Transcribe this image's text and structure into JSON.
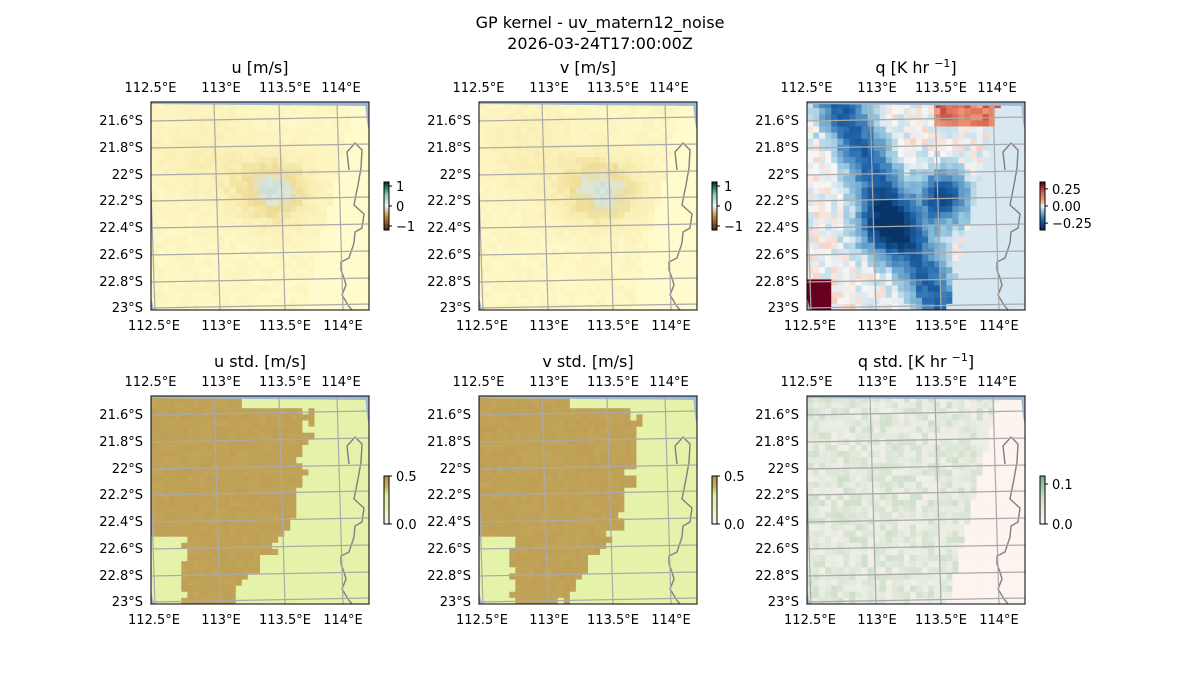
{
  "figure": {
    "title_line1": "GP kernel - uv_matern12_noise",
    "title_line2": "2026-03-24T17:00:00Z"
  },
  "chart_data": [
    {
      "type": "heatmap",
      "id": "u",
      "title": "u [m/s]",
      "lon_ticks": [
        "112.5°E",
        "113°E",
        "113.5°E",
        "114°E"
      ],
      "lat_ticks": [
        "21.6°S",
        "21.8°S",
        "22°S",
        "22.2°S",
        "22.4°S",
        "22.6°S",
        "22.8°S",
        "23°S"
      ],
      "colorbar": {
        "ticks": [
          "1",
          "0",
          "−1"
        ],
        "range": [
          -1.2,
          1.2
        ]
      },
      "colormap": "BrBG",
      "field_level_range": [
        0.0,
        0.25
      ]
    },
    {
      "type": "heatmap",
      "id": "v",
      "title": "v [m/s]",
      "lon_ticks": [
        "112.5°E",
        "113°E",
        "113.5°E",
        "114°E"
      ],
      "lat_ticks": [
        "21.6°S",
        "21.8°S",
        "22°S",
        "22.2°S",
        "22.4°S",
        "22.6°S",
        "22.8°S",
        "23°S"
      ],
      "colorbar": {
        "ticks": [
          "1",
          "0",
          "−1"
        ],
        "range": [
          -1.2,
          1.2
        ]
      },
      "colormap": "BrBG",
      "field_level_range": [
        0.0,
        0.25
      ]
    },
    {
      "type": "heatmap",
      "id": "q",
      "title": "q [K hr ",
      "title_sup": "−1",
      "title_end": "]",
      "lon_ticks": [
        "112.5°E",
        "113°E",
        "113.5°E",
        "114°E"
      ],
      "lat_ticks": [
        "21.6°S",
        "21.8°S",
        "22°S",
        "22.2°S",
        "22.4°S",
        "22.6°S",
        "22.8°S",
        "23°S"
      ],
      "colorbar": {
        "ticks": [
          "0.25",
          "0.00",
          "−0.25"
        ],
        "range": [
          -0.35,
          0.35
        ]
      },
      "colormap": "RdBu_r",
      "field_level_range": [
        -0.35,
        0.1
      ]
    },
    {
      "type": "heatmap",
      "id": "u_std",
      "title": "u std. [m/s]",
      "lon_ticks": [
        "112.5°E",
        "113°E",
        "113.5°E",
        "114°E"
      ],
      "lat_ticks": [
        "21.6°S",
        "21.8°S",
        "22°S",
        "22.2°S",
        "22.4°S",
        "22.6°S",
        "22.8°S",
        "23°S"
      ],
      "colorbar": {
        "ticks": [
          "0.5",
          "0.0"
        ],
        "range": [
          0.0,
          0.5
        ]
      },
      "colormap": "tan-to-yellowgreen",
      "field_level_range": [
        0.3,
        0.5
      ]
    },
    {
      "type": "heatmap",
      "id": "v_std",
      "title": "v std. [m/s]",
      "lon_ticks": [
        "112.5°E",
        "113°E",
        "113.5°E",
        "114°E"
      ],
      "lat_ticks": [
        "21.6°S",
        "21.8°S",
        "22°S",
        "22.2°S",
        "22.4°S",
        "22.6°S",
        "22.8°S",
        "23°S"
      ],
      "colorbar": {
        "ticks": [
          "0.5",
          "0.0"
        ],
        "range": [
          0.0,
          0.5
        ]
      },
      "colormap": "tan-to-yellowgreen",
      "field_level_range": [
        0.3,
        0.5
      ]
    },
    {
      "type": "heatmap",
      "id": "q_std",
      "title": "q std. [K hr ",
      "title_sup": "−1",
      "title_end": "]",
      "lon_ticks": [
        "112.5°E",
        "113°E",
        "113.5°E",
        "114°E"
      ],
      "lat_ticks": [
        "21.6°S",
        "21.8°S",
        "22°S",
        "22.2°S",
        "22.4°S",
        "22.6°S",
        "22.8°S",
        "23°S"
      ],
      "colorbar": {
        "ticks": [
          "0.1",
          "0.0"
        ],
        "range": [
          0.0,
          0.12
        ]
      },
      "colormap": "pink-to-green",
      "field_level_range": [
        0.0,
        0.04
      ]
    }
  ]
}
